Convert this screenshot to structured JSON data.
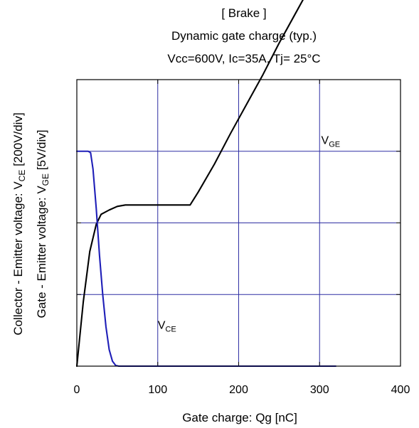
{
  "chart_data": {
    "type": "line",
    "title_lines": [
      "[ Brake ]",
      "Dynamic gate charge  (typ.)",
      "Vcc=600V,  Ic=35A, Tj= 25°C"
    ],
    "xlabel": "Gate charge: Qg [nC]",
    "ylabel_lines": [
      {
        "before": "Collector - Emitter voltage: V",
        "sub": "CE",
        "after": " [200V/div]"
      },
      {
        "before": "Gate - Emitter voltage: V",
        "sub": "GE",
        "after": " [5V/div]"
      }
    ],
    "xlim": [
      0,
      400
    ],
    "x_ticks": [
      0,
      100,
      200,
      300,
      400
    ],
    "x_tick_labels": [
      "0",
      "100",
      "200",
      "300",
      "400"
    ],
    "ydiv_count": 4,
    "grid": true,
    "colors": {
      "grid": "#2f2fa3",
      "frame": "#000000",
      "vge": "#000000",
      "vce": "#1f1fb8"
    },
    "series": [
      {
        "name_main": "V",
        "name_sub": "GE",
        "units": "div",
        "x": [
          0,
          8,
          16,
          24,
          30,
          40,
          50,
          60,
          80,
          100,
          120,
          140,
          150,
          170,
          190,
          210,
          230,
          250,
          270,
          290,
          310
        ],
        "y": [
          0,
          0.9,
          1.6,
          1.98,
          2.12,
          2.18,
          2.23,
          2.25,
          2.25,
          2.25,
          2.25,
          2.25,
          2.43,
          2.82,
          3.25,
          3.66,
          4.07,
          4.51,
          4.92,
          5.33,
          5.73
        ]
      },
      {
        "name_main": "V",
        "name_sub": "CE",
        "units": "div",
        "x": [
          0,
          5,
          10,
          14,
          17,
          20,
          24,
          28,
          32,
          36,
          40,
          44,
          48,
          52,
          55,
          60,
          80,
          100,
          200,
          300,
          320
        ],
        "y": [
          3.0,
          3.0,
          3.0,
          3.0,
          2.98,
          2.75,
          2.2,
          1.55,
          1.0,
          0.55,
          0.23,
          0.07,
          0.01,
          0.0,
          0.0,
          0.0,
          0.0,
          0.0,
          0.0,
          0.0,
          0.0
        ]
      }
    ],
    "series_labels": [
      {
        "main": "V",
        "sub": "GE",
        "x": 302,
        "y": 3.1
      },
      {
        "main": "V",
        "sub": "CE",
        "x": 100,
        "y": 0.52
      }
    ]
  }
}
